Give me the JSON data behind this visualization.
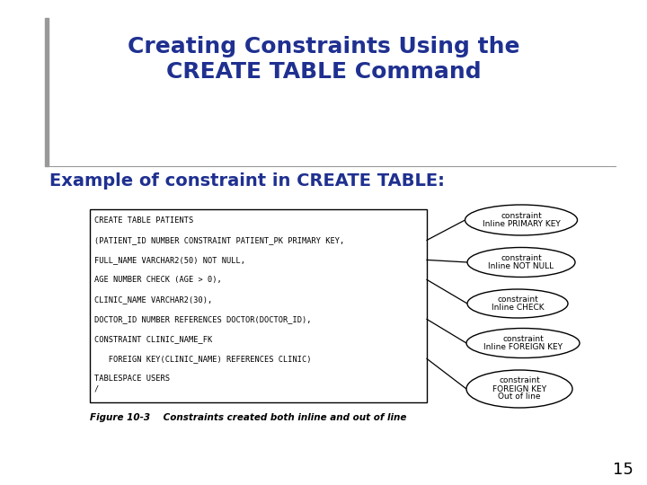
{
  "title_line1": "Creating Constraints Using the",
  "title_line2": "CREATE TABLE Command",
  "subtitle": "Example of constraint in CREATE TABLE:",
  "title_color": "#1F3090",
  "subtitle_color": "#1F3090",
  "background_color": "#FFFFFF",
  "left_bar_color": "#999999",
  "page_number": "15",
  "figure_caption": "Figure 10-3    Constraints created both inline and out of line",
  "code_lines": [
    "CREATE TABLE PATIENTS",
    "",
    "(PATIENT_ID NUMBER CONSTRAINT PATIENT_PK PRIMARY KEY,",
    "",
    "FULL_NAME VARCHAR2(50) NOT NULL,",
    "",
    "AGE NUMBER CHECK (AGE > 0),",
    "",
    "CLINIC_NAME VARCHAR2(30),",
    "",
    "DOCTOR_ID NUMBER REFERENCES DOCTOR(DOCTOR_ID),",
    "",
    "CONSTRAINT CLINIC_NAME_FK",
    "",
    "   FOREIGN KEY(CLINIC_NAME) REFERENCES CLINIC)",
    "",
    "TABLESPACE USERS",
    "/"
  ],
  "ellipse_texts": [
    [
      "Inline PRIMARY KEY",
      "constraint"
    ],
    [
      "Inline NOT NULL",
      "constraint"
    ],
    [
      "Inline CHECK",
      "constraint"
    ],
    [
      "Inline FOREIGN KEY",
      "constraint"
    ],
    [
      "Out of line",
      "FOREIGN KEY",
      "constraint"
    ]
  ],
  "title_fontsize": 18,
  "subtitle_fontsize": 14,
  "code_fontsize": 6.2,
  "ellipse_fontsize": 6.5,
  "caption_fontsize": 7.5,
  "pagenumber_fontsize": 13
}
